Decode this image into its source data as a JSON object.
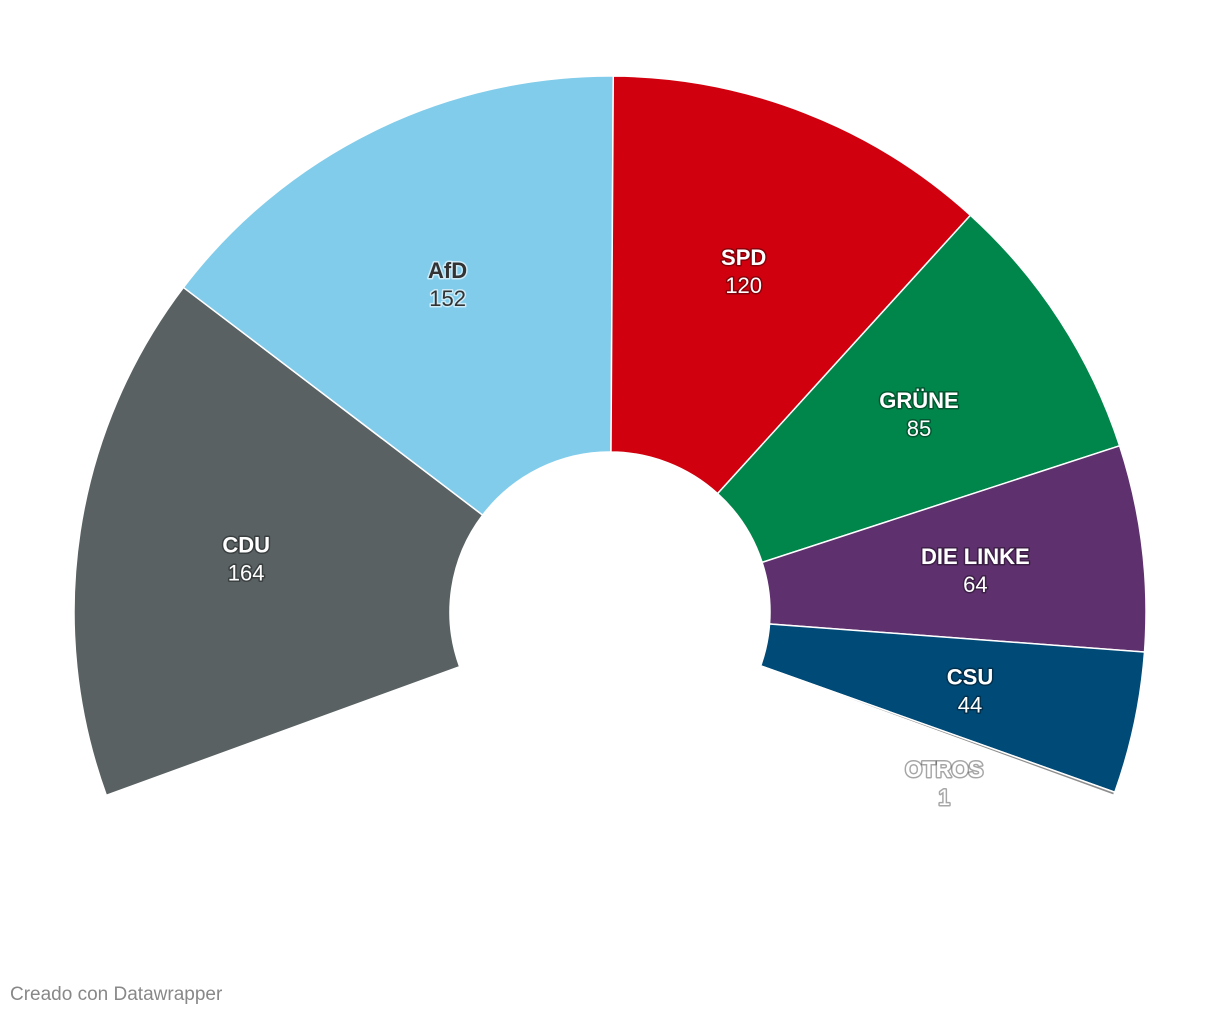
{
  "chart_data": {
    "type": "pie",
    "subtype": "parliament-semicircle",
    "title": "",
    "series": [
      {
        "name": "CDU",
        "value": 164,
        "color": "#596163",
        "label_color": "light"
      },
      {
        "name": "AfD",
        "value": 152,
        "color": "#81cceb",
        "label_color": "dark"
      },
      {
        "name": "SPD",
        "value": 120,
        "color": "#d1000e",
        "label_color": "light"
      },
      {
        "name": "GRÜNE",
        "value": 85,
        "color": "#00864a",
        "label_color": "light"
      },
      {
        "name": "DIE LINKE",
        "value": 64,
        "color": "#5e306d",
        "label_color": "light"
      },
      {
        "name": "CSU",
        "value": 44,
        "color": "#004a77",
        "label_color": "light"
      },
      {
        "name": "OTROS",
        "value": 1,
        "color": "#8d8d8d",
        "label_color": "light"
      }
    ]
  },
  "footer": {
    "credit": "Creado con Datawrapper"
  }
}
